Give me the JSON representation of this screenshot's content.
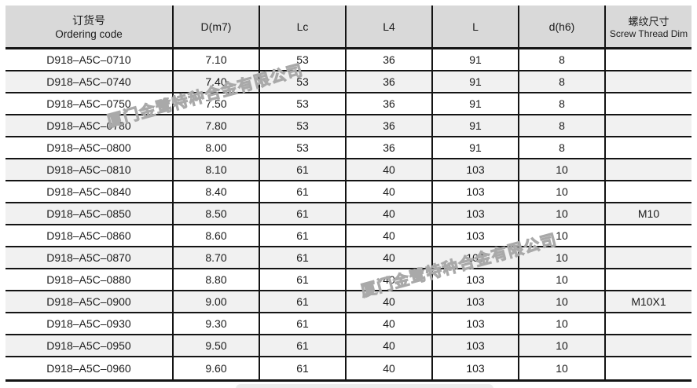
{
  "header": {
    "col_ordering_zh": "订货号",
    "col_ordering_en": "Ordering code",
    "col_d": "D(m7)",
    "col_lc": "Lc",
    "col_l4": "L4",
    "col_l": "L",
    "col_dh6": "d(h6)",
    "col_thread_zh": "螺纹尺寸",
    "col_thread_en": "Screw Thread Dim"
  },
  "rows": [
    [
      "D918–A5C–0710",
      "7.10",
      "53",
      "36",
      "91",
      "8",
      ""
    ],
    [
      "D918–A5C–0740",
      "7.40",
      "53",
      "36",
      "91",
      "8",
      ""
    ],
    [
      "D918–A5C–0750",
      "7.50",
      "53",
      "36",
      "91",
      "8",
      ""
    ],
    [
      "D918–A5C–0780",
      "7.80",
      "53",
      "36",
      "91",
      "8",
      ""
    ],
    [
      "D918–A5C–0800",
      "8.00",
      "53",
      "36",
      "91",
      "8",
      ""
    ],
    [
      "D918–A5C–0810",
      "8.10",
      "61",
      "40",
      "103",
      "10",
      ""
    ],
    [
      "D918–A5C–0840",
      "8.40",
      "61",
      "40",
      "103",
      "10",
      ""
    ],
    [
      "D918–A5C–0850",
      "8.50",
      "61",
      "40",
      "103",
      "10",
      "M10"
    ],
    [
      "D918–A5C–0860",
      "8.60",
      "61",
      "40",
      "103",
      "10",
      ""
    ],
    [
      "D918–A5C–0870",
      "8.70",
      "61",
      "40",
      "103",
      "10",
      ""
    ],
    [
      "D918–A5C–0880",
      "8.80",
      "61",
      "40",
      "103",
      "10",
      ""
    ],
    [
      "D918–A5C–0900",
      "9.00",
      "61",
      "40",
      "103",
      "10",
      "M10X1"
    ],
    [
      "D918–A5C–0930",
      "9.30",
      "61",
      "40",
      "103",
      "10",
      ""
    ],
    [
      "D918–A5C–0950",
      "9.50",
      "61",
      "40",
      "103",
      "10",
      ""
    ],
    [
      "D918–A5C–0960",
      "9.60",
      "61",
      "40",
      "103",
      "10",
      ""
    ]
  ],
  "watermark": {
    "text": "厦门金鹭特种合金有限公司"
  },
  "colors": {
    "header_bg": "#d9d9d9",
    "row_alt_bg": "#f1f1f1",
    "border": "#141414",
    "watermark": "#a9a9a9"
  }
}
